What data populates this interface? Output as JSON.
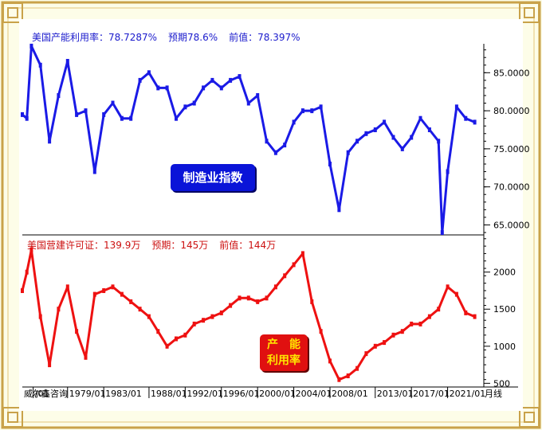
{
  "headers": {
    "top": [
      "美国产能利用率：78.7287%",
      "预期78.6%",
      "前值：78.397%"
    ],
    "bottom": [
      "美国营建许可证：139.9万",
      "预期：145万",
      "前值：144万"
    ]
  },
  "badges": {
    "top": "制造业指数",
    "bottom_line1": "产　能",
    "bottom_line2": "利用率"
  },
  "footer": {
    "watermark": "威尔鑫咨询",
    "unit_label": "月线"
  },
  "colors": {
    "top_series": "#1a1ae6",
    "bottom_series": "#ee1111",
    "frame": "#c9a24a",
    "top_badge": "#0a14d8",
    "bottom_badge": "#e01010"
  },
  "chart_data": [
    {
      "type": "line",
      "name": "",
      "x": [
        1974,
        1974.5,
        1975,
        1976,
        1977,
        1978,
        1979,
        1980,
        1981,
        1982,
        1983,
        1984,
        1985,
        1986,
        1987,
        1988,
        1989,
        1990,
        1991,
        1992,
        1993,
        1994,
        1995,
        1996,
        1997,
        1998,
        1999,
        2000,
        2001,
        2002,
        2003,
        2004,
        2005,
        2006,
        2007,
        2008,
        2009,
        2010,
        2011,
        2012,
        2013,
        2014,
        2015,
        2016,
        2017,
        2018,
        2019,
        2020,
        2020.4,
        2021,
        2022,
        2023,
        2024
      ],
      "values": [
        79.5,
        79,
        88.5,
        86,
        76,
        82,
        86.5,
        79.5,
        80,
        72,
        79.5,
        81,
        79,
        79,
        84,
        85,
        83,
        83,
        79,
        80.5,
        81,
        83,
        84,
        83,
        84,
        84.5,
        81,
        82,
        76,
        74.5,
        75.5,
        78.5,
        80,
        80,
        80.5,
        73,
        67,
        74.5,
        76,
        77,
        77.5,
        78.5,
        76.5,
        75,
        76.5,
        79,
        77.5,
        76,
        64,
        72,
        80.5,
        79,
        78.5
      ],
      "ylim": [
        64,
        88.8
      ],
      "yticks": [
        "85.0000",
        "80.0000",
        "75.0000",
        "70.0000",
        "65.0000"
      ],
      "ytick_values": [
        85,
        80,
        75,
        70,
        65
      ]
    },
    {
      "type": "line",
      "name": "",
      "x": [
        1974,
        1974.5,
        1975,
        1976,
        1977,
        1978,
        1979,
        1980,
        1981,
        1982,
        1983,
        1984,
        1985,
        1986,
        1987,
        1988,
        1989,
        1990,
        1991,
        1992,
        1993,
        1994,
        1995,
        1996,
        1997,
        1998,
        1999,
        2000,
        2001,
        2002,
        2003,
        2004,
        2005,
        2006,
        2007,
        2008,
        2009,
        2010,
        2011,
        2012,
        2013,
        2014,
        2015,
        2016,
        2017,
        2018,
        2019,
        2020,
        2021,
        2022,
        2023,
        2024
      ],
      "values": [
        1750,
        2000,
        2300,
        1400,
        750,
        1500,
        1800,
        1200,
        850,
        1700,
        1750,
        1800,
        1700,
        1600,
        1500,
        1400,
        1200,
        1000,
        1100,
        1150,
        1300,
        1350,
        1400,
        1450,
        1550,
        1650,
        1650,
        1600,
        1650,
        1800,
        1950,
        2100,
        2250,
        1600,
        1200,
        800,
        550,
        600,
        700,
        900,
        1000,
        1050,
        1150,
        1200,
        1300,
        1300,
        1400,
        1500,
        1800,
        1700,
        1450,
        1400
      ],
      "ylim": [
        450,
        2480
      ],
      "yticks": [
        "2000",
        "1500",
        "1000",
        "500"
      ],
      "ytick_values": [
        2000,
        1500,
        1000,
        500
      ]
    }
  ],
  "x_axis": {
    "ticks": [
      "/01",
      "1979/01",
      "1983/01",
      "1988/01",
      "1992/01",
      "1996/01",
      "2000/01",
      "2004/01",
      "2008/01",
      "2013/01",
      "2017/01",
      "2021/01"
    ],
    "tick_years": [
      1975.2,
      1979,
      1983,
      1988,
      1992,
      1996,
      2000,
      2004,
      2008,
      2013,
      2017,
      2021
    ],
    "range": [
      1974,
      2025
    ]
  }
}
